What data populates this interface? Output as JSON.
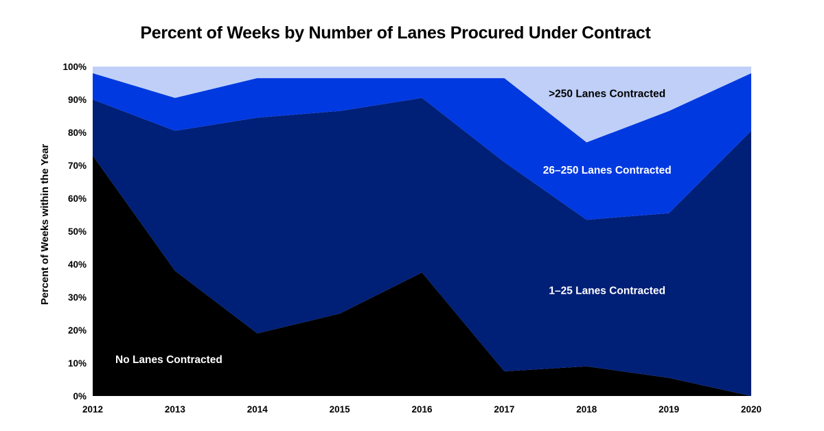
{
  "chart_data": {
    "type": "area",
    "stacked": true,
    "title": "Percent of Weeks by Number of Lanes Procured Under Contract",
    "xlabel": "",
    "ylabel": "Percent of Weeks within the Year",
    "x": [
      "2012",
      "2013",
      "2014",
      "2015",
      "2016",
      "2017",
      "2018",
      "2019",
      "2020"
    ],
    "ylim": [
      0,
      100
    ],
    "yticks": [
      "0%",
      "10%",
      "20%",
      "30%",
      "40%",
      "50%",
      "60%",
      "70%",
      "80%",
      "90%",
      "100%"
    ],
    "grid": false,
    "series": [
      {
        "name": "No Lanes Contracted",
        "color": "#000000",
        "label_color": "#ffffff",
        "values": [
          73,
          38,
          19,
          25,
          37.5,
          7.5,
          9,
          5.5,
          0
        ]
      },
      {
        "name": "1–25 Lanes Contracted",
        "color": "#001f77",
        "label_color": "#ffffff",
        "values": [
          17,
          42.5,
          65.5,
          61.5,
          53,
          63.5,
          44.5,
          50,
          80.5
        ]
      },
      {
        "name": "26–250 Lanes Contracted",
        "color": "#0039e0",
        "label_color": "#ffffff",
        "values": [
          8,
          10,
          12,
          10,
          6,
          25.5,
          23.5,
          31,
          17.5
        ]
      },
      {
        "name": ">250 Lanes Contracted",
        "color": "#bfcff7",
        "label_color": "#000000",
        "values": [
          2,
          9.5,
          3.5,
          3.5,
          3.5,
          3.5,
          23,
          13.5,
          2
        ]
      }
    ]
  }
}
